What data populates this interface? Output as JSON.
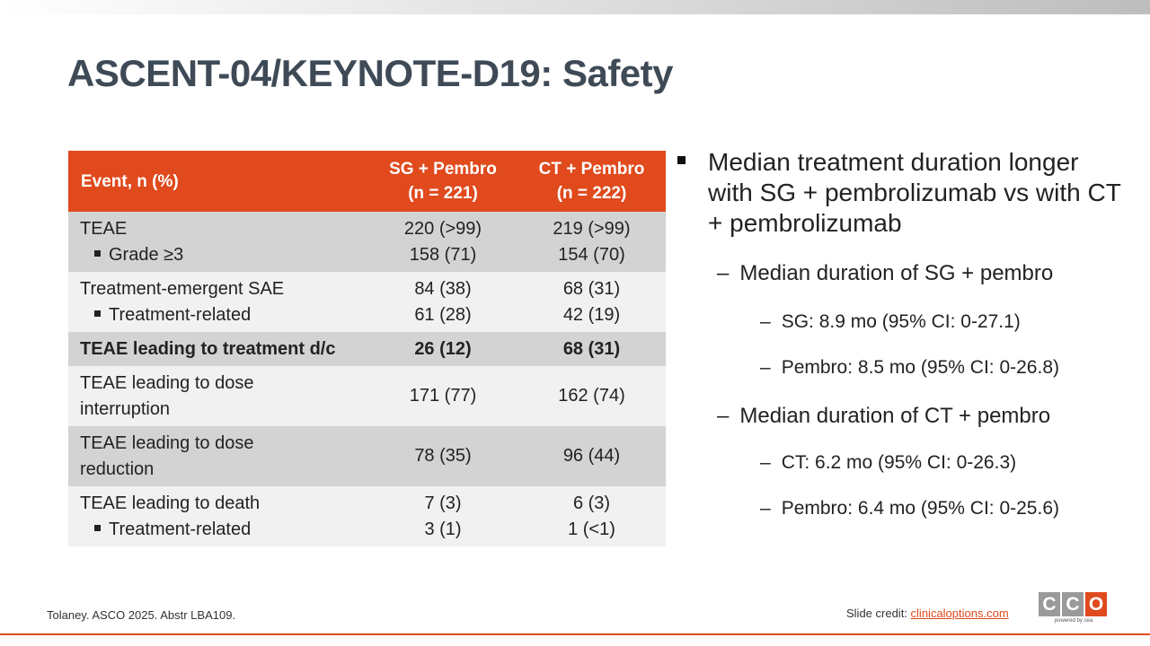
{
  "slide": {
    "title": "ASCENT-04/KEYNOTE-D19: Safety"
  },
  "table": {
    "headers": {
      "event": "Event, n (%)",
      "col1_line1": "SG + Pembro",
      "col1_line2": "(n = 221)",
      "col2_line1": "CT + Pembro",
      "col2_line2": "(n = 222)"
    },
    "rows": [
      {
        "label": "TEAE",
        "sg": "220 (>99)",
        "ct": "219 (>99)",
        "sub_label": "Grade ≥3",
        "sub_sg": "158 (71)",
        "sub_ct": "154 (70)"
      },
      {
        "label": "Treatment-emergent SAE",
        "sg": "84 (38)",
        "ct": "68 (31)",
        "sub_label": "Treatment-related",
        "sub_sg": "61 (28)",
        "sub_ct": "42 (19)"
      },
      {
        "label": "TEAE leading to treatment d/c",
        "sg": "26 (12)",
        "ct": "68 (31)"
      },
      {
        "label_line1": "TEAE leading to dose",
        "label_line2": "interruption",
        "sg": "171 (77)",
        "ct": "162 (74)"
      },
      {
        "label_line1": "TEAE leading to dose",
        "label_line2": "reduction",
        "sg": "78 (35)",
        "ct": "96 (44)"
      },
      {
        "label": "TEAE leading to death",
        "sg": "7 (3)",
        "ct": "6 (3)",
        "sub_label": "Treatment-related",
        "sub_sg": "3 (1)",
        "sub_ct": "1 (<1)"
      }
    ]
  },
  "bullets": {
    "main": "Median treatment duration longer with SG + pembrolizumab vs with CT + pembrolizumab",
    "sg_group": {
      "heading": "Median duration of SG + pembro",
      "items": [
        "SG: 8.9 mo (95% CI: 0-27.1)",
        "Pembro: 8.5 mo (95% CI: 0-26.8)"
      ]
    },
    "ct_group": {
      "heading": "Median duration of CT + pembro",
      "items": [
        "CT: 6.2 mo (95% CI: 0-26.3)",
        "Pembro: 6.4 mo (95% CI: 0-25.6)"
      ]
    }
  },
  "footer": {
    "citation": "Tolaney. ASCO 2025. Abstr LBA109.",
    "credit_label": "Slide credit: ",
    "credit_link": "clinicaloptions.com",
    "logo_letters": [
      "C",
      "C",
      "O"
    ],
    "logo_tagline": "powered by cea"
  }
}
